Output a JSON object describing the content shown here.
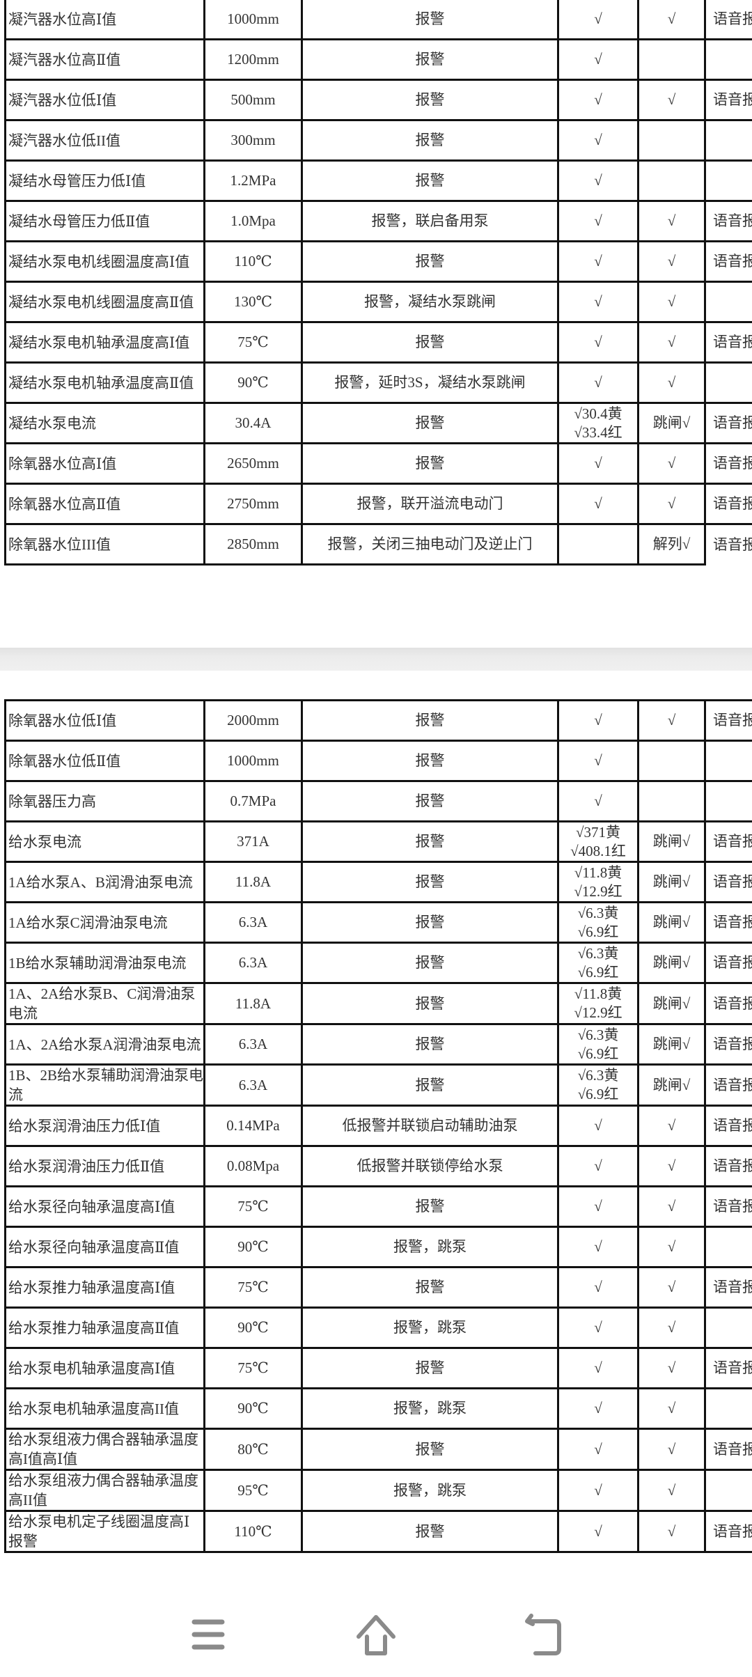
{
  "table1": {
    "rows": [
      [
        "凝汽器水位高Ⅰ值",
        "1000mm",
        "报警",
        "√",
        "√",
        "语音报"
      ],
      [
        "凝汽器水位高Ⅱ值",
        "1200mm",
        "报警",
        "√",
        "",
        ""
      ],
      [
        "凝汽器水位低Ⅰ值",
        "500mm",
        "报警",
        "√",
        "√",
        "语音报"
      ],
      [
        "凝汽器水位低II值",
        "300mm",
        "报警",
        "√",
        "",
        ""
      ],
      [
        "凝结水母管压力低Ⅰ值",
        "1.2MPa",
        "报警",
        "√",
        "",
        ""
      ],
      [
        "凝结水母管压力低Ⅱ值",
        "1.0Mpa",
        "报警，联启备用泵",
        "√",
        "√",
        "语音报"
      ],
      [
        "凝结水泵电机线圈温度高Ⅰ值",
        "110℃",
        "报警",
        "√",
        "√",
        "语音报"
      ],
      [
        "凝结水泵电机线圈温度高Ⅱ值",
        "130℃",
        "报警，凝结水泵跳闸",
        "√",
        "√",
        ""
      ],
      [
        "凝结水泵电机轴承温度高Ⅰ值",
        "75℃",
        "报警",
        "√",
        "√",
        "语音报"
      ],
      [
        "凝结水泵电机轴承温度高Ⅱ值",
        "90℃",
        "报警，延时3S，凝结水泵跳闸",
        "√",
        "√",
        ""
      ],
      [
        "凝结水泵电流",
        "30.4A",
        "报警",
        "√30.4黄\n√33.4红",
        "跳闸√",
        "语音报"
      ],
      [
        "除氧器水位高Ⅰ值",
        "2650mm",
        "报警",
        "√",
        "√",
        "语音报"
      ],
      [
        "除氧器水位高Ⅱ值",
        "2750mm",
        "报警，联开溢流电动门",
        "√",
        "√",
        "语音报"
      ],
      [
        "除氧器水位III值",
        "2850mm",
        "报警，关闭三抽电动门及逆止门",
        "",
        "解列√",
        "语音报"
      ]
    ]
  },
  "table2": {
    "rows": [
      [
        "除氧器水位低Ⅰ值",
        "2000mm",
        "报警",
        "√",
        "√",
        "语音报"
      ],
      [
        "除氧器水位低Ⅱ值",
        "1000mm",
        "报警",
        "√",
        "",
        ""
      ],
      [
        "除氧器压力高",
        "0.7MPa",
        "报警",
        "√",
        "",
        ""
      ],
      [
        "给水泵电流",
        "371A",
        "报警",
        "√371黄\n√408.1红",
        "跳闸√",
        "语音报"
      ],
      [
        "1A给水泵A、B润滑油泵电流",
        "11.8A",
        "报警",
        "√11.8黄\n√12.9红",
        "跳闸√",
        "语音报"
      ],
      [
        "1A给水泵C润滑油泵电流",
        "6.3A",
        "报警",
        "√6.3黄\n√6.9红",
        "跳闸√",
        "语音报"
      ],
      [
        "1B给水泵辅助润滑油泵电流",
        "6.3A",
        "报警",
        "√6.3黄\n√6.9红",
        "跳闸√",
        "语音报"
      ],
      [
        "1A、2A给水泵B、C润滑油泵电流",
        "11.8A",
        "报警",
        "√11.8黄\n√12.9红",
        "跳闸√",
        "语音报"
      ],
      [
        "1A、2A给水泵A润滑油泵电流",
        "6.3A",
        "报警",
        "√6.3黄\n√6.9红",
        "跳闸√",
        "语音报"
      ],
      [
        "1B、2B给水泵辅助润滑油泵电流",
        "6.3A",
        "报警",
        "√6.3黄\n√6.9红",
        "跳闸√",
        "语音报"
      ],
      [
        "给水泵润滑油压力低Ⅰ值",
        "0.14MPa",
        "低报警并联锁启动辅助油泵",
        "√",
        "√",
        "语音报"
      ],
      [
        "给水泵润滑油压力低Ⅱ值",
        "0.08Mpa",
        "低报警并联锁停给水泵",
        "√",
        "√",
        "语音报"
      ],
      [
        "给水泵径向轴承温度高Ⅰ值",
        "75℃",
        "报警",
        "√",
        "√",
        "语音报"
      ],
      [
        "给水泵径向轴承温度高Ⅱ值",
        "90℃",
        "报警，跳泵",
        "√",
        "√",
        ""
      ],
      [
        "给水泵推力轴承温度高Ⅰ值",
        "75℃",
        "报警",
        "√",
        "√",
        "语音报"
      ],
      [
        "给水泵推力轴承温度高Ⅱ值",
        "90℃",
        "报警，跳泵",
        "√",
        "√",
        ""
      ],
      [
        "给水泵电机轴承温度高Ⅰ值",
        "75℃",
        "报警",
        "√",
        "√",
        "语音报"
      ],
      [
        "给水泵电机轴承温度高II值",
        "90℃",
        "报警，跳泵",
        "√",
        "√",
        ""
      ],
      [
        "给水泵组液力偶合器轴承温度高I值高Ⅰ值",
        "80℃",
        "报警",
        "√",
        "√",
        "语音报"
      ],
      [
        "给水泵组液力偶合器轴承温度高II值",
        "95℃",
        "报警，跳泵",
        "√",
        "√",
        ""
      ],
      [
        "给水泵电机定子线圈温度高Ⅰ报警",
        "110℃",
        "报警",
        "√",
        "√",
        "语音报"
      ]
    ]
  },
  "nav": {
    "icons": [
      "menu-icon",
      "home-icon",
      "back-icon"
    ],
    "icon_color": "#8a8a8a"
  }
}
